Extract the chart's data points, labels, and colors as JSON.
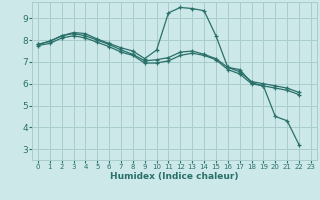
{
  "xlabel": "Humidex (Indice chaleur)",
  "bg_color": "#cce8e8",
  "grid_color": "#a8cccc",
  "line_color": "#2a706a",
  "xlim": [
    -0.5,
    23.5
  ],
  "ylim": [
    2.5,
    9.75
  ],
  "yticks": [
    3,
    4,
    5,
    6,
    7,
    8,
    9
  ],
  "xticks": [
    0,
    1,
    2,
    3,
    4,
    5,
    6,
    7,
    8,
    9,
    10,
    11,
    12,
    13,
    14,
    15,
    16,
    17,
    18,
    19,
    20,
    21,
    22,
    23
  ],
  "line1_x": [
    0,
    1,
    2,
    3,
    4,
    5,
    6,
    7,
    8,
    9,
    10,
    11,
    12,
    13,
    14,
    15,
    16,
    17,
    18,
    19,
    20,
    21,
    22,
    23
  ],
  "line1_y": [
    7.8,
    7.95,
    8.2,
    8.35,
    8.3,
    8.05,
    7.85,
    7.65,
    7.5,
    7.15,
    7.55,
    9.25,
    9.5,
    9.45,
    9.35,
    8.2,
    6.75,
    6.65,
    6.05,
    5.9,
    4.5,
    4.3,
    3.2,
    null
  ],
  "line2_x": [
    0,
    1,
    2,
    3,
    4,
    5,
    6,
    7,
    8,
    9,
    10,
    11,
    12,
    13,
    14,
    15,
    16,
    17,
    18,
    19,
    20,
    21,
    22,
    23
  ],
  "line2_y": [
    7.8,
    7.95,
    8.2,
    8.3,
    8.2,
    8.0,
    7.8,
    7.55,
    7.35,
    7.05,
    7.1,
    7.2,
    7.45,
    7.5,
    7.35,
    7.15,
    6.75,
    6.55,
    6.1,
    6.0,
    5.9,
    5.8,
    5.6,
    null
  ],
  "line3_x": [
    0,
    1,
    2,
    3,
    4,
    5,
    6,
    7,
    8,
    9,
    10,
    11,
    12,
    13,
    14,
    15,
    16,
    17,
    18,
    19,
    20,
    21,
    22,
    23
  ],
  "line3_y": [
    7.75,
    7.85,
    8.1,
    8.2,
    8.1,
    7.9,
    7.7,
    7.45,
    7.3,
    6.95,
    6.95,
    7.05,
    7.3,
    7.4,
    7.3,
    7.1,
    6.65,
    6.45,
    6.0,
    5.9,
    5.8,
    5.7,
    5.5,
    null
  ]
}
